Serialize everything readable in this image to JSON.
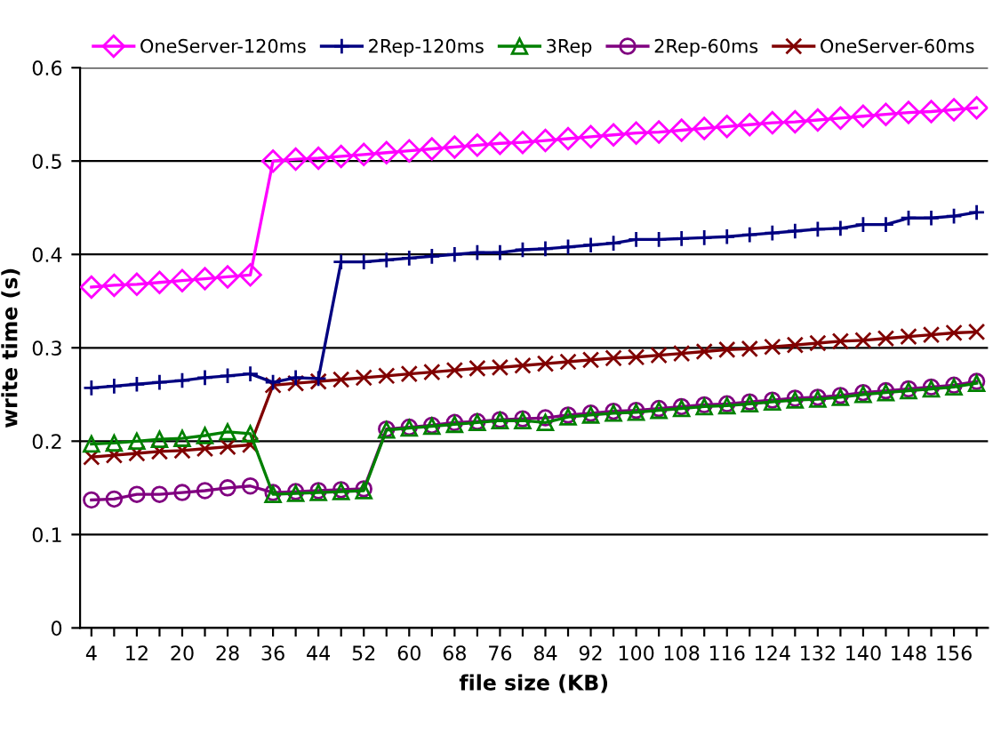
{
  "chart_data": {
    "type": "line",
    "xlabel": "file size (KB)",
    "ylabel": "write time (s)",
    "categories": [
      "4",
      null,
      "12",
      null,
      "20",
      null,
      "28",
      null,
      "36",
      null,
      "44",
      null,
      "52",
      null,
      "60",
      null,
      "68",
      null,
      "76",
      null,
      "84",
      null,
      "92",
      null,
      "100",
      null,
      "108",
      null,
      "116",
      null,
      "124",
      null,
      "132",
      null,
      "140",
      null,
      "148",
      null,
      "156",
      null
    ],
    "ylim": [
      0,
      0.6
    ],
    "yticks": [
      0,
      0.1,
      0.2,
      0.3,
      0.4,
      0.5,
      0.6
    ],
    "grid": "y",
    "legend": "top",
    "line_style": "solid",
    "series": [
      {
        "name": "OneServer-120ms",
        "color": "#ff00ff",
        "marker": "diamond",
        "values": [
          0.365,
          0.367,
          0.368,
          0.37,
          0.372,
          0.374,
          0.376,
          0.378,
          0.5,
          0.502,
          0.503,
          0.505,
          0.507,
          0.509,
          0.511,
          0.513,
          0.515,
          0.517,
          0.519,
          0.52,
          0.522,
          0.524,
          0.526,
          0.528,
          0.53,
          0.531,
          0.533,
          0.535,
          0.537,
          0.539,
          0.541,
          0.542,
          0.544,
          0.546,
          0.548,
          0.55,
          0.552,
          0.553,
          0.555,
          0.557
        ]
      },
      {
        "name": "2Rep-120ms",
        "color": "#000080",
        "marker": "plus",
        "values": [
          0.257,
          0.259,
          0.261,
          0.263,
          0.265,
          0.268,
          0.27,
          0.272,
          0.263,
          0.268,
          0.267,
          0.392,
          0.392,
          0.394,
          0.396,
          0.398,
          0.4,
          0.402,
          0.402,
          0.405,
          0.406,
          0.408,
          0.41,
          0.412,
          0.416,
          0.416,
          0.417,
          0.418,
          0.419,
          0.421,
          0.423,
          0.425,
          0.427,
          0.428,
          0.432,
          0.432,
          0.439,
          0.439,
          0.441,
          0.445
        ]
      },
      {
        "name": "3Rep",
        "color": "#008000",
        "marker": "triangle",
        "values": [
          0.197,
          0.198,
          0.2,
          0.202,
          0.203,
          0.206,
          0.21,
          0.208,
          0.143,
          0.144,
          0.145,
          0.146,
          0.147,
          0.212,
          0.214,
          0.216,
          0.218,
          0.22,
          0.222,
          0.222,
          0.22,
          0.226,
          0.228,
          0.23,
          0.231,
          0.233,
          0.235,
          0.237,
          0.238,
          0.24,
          0.242,
          0.244,
          0.245,
          0.247,
          0.25,
          0.252,
          0.254,
          0.256,
          0.258,
          0.262
        ]
      },
      {
        "name": "2Rep-60ms",
        "color": "#800080",
        "marker": "circle",
        "values": [
          0.137,
          0.138,
          0.143,
          0.143,
          0.145,
          0.147,
          0.15,
          0.152,
          0.145,
          0.146,
          0.147,
          0.148,
          0.149,
          0.213,
          0.215,
          0.217,
          0.22,
          0.221,
          0.223,
          0.224,
          0.225,
          0.228,
          0.23,
          0.232,
          0.233,
          0.235,
          0.237,
          0.239,
          0.24,
          0.242,
          0.244,
          0.246,
          0.247,
          0.249,
          0.252,
          0.254,
          0.256,
          0.258,
          0.26,
          0.264
        ]
      },
      {
        "name": "OneServer-60ms",
        "color": "#800000",
        "marker": "cross",
        "values": [
          0.183,
          0.185,
          0.187,
          0.189,
          0.19,
          0.192,
          0.194,
          0.196,
          0.26,
          0.262,
          0.264,
          0.266,
          0.268,
          0.27,
          0.272,
          0.274,
          0.276,
          0.278,
          0.279,
          0.281,
          0.283,
          0.285,
          0.287,
          0.289,
          0.29,
          0.292,
          0.294,
          0.296,
          0.298,
          0.299,
          0.301,
          0.303,
          0.305,
          0.307,
          0.308,
          0.31,
          0.312,
          0.314,
          0.316,
          0.317
        ]
      }
    ]
  }
}
